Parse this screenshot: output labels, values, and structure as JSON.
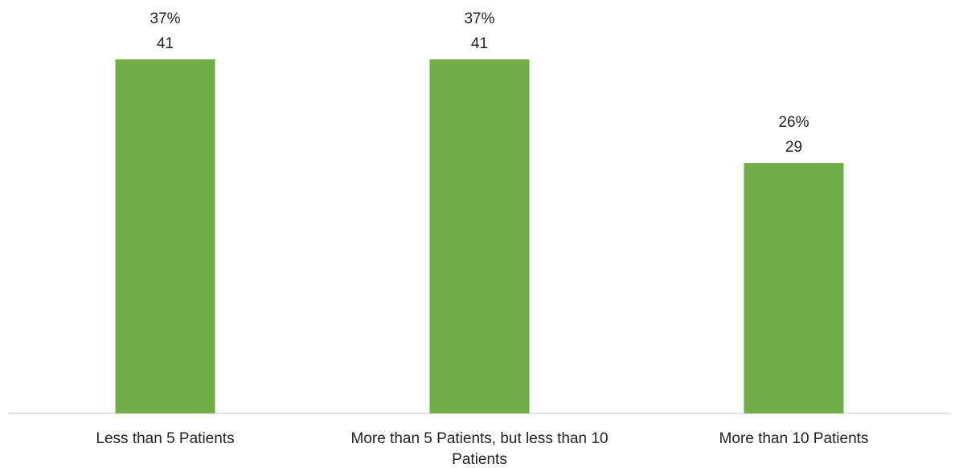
{
  "chart_data": {
    "type": "bar",
    "categories": [
      [
        "Less than 5 Patients"
      ],
      [
        "More than 5 Patients, but less than 10",
        "Patients"
      ],
      [
        "More than 10 Patients"
      ]
    ],
    "values": [
      41,
      41,
      29
    ],
    "percent_labels": [
      "37%",
      "37%",
      "26%"
    ],
    "count_labels": [
      "41",
      "41",
      "29"
    ],
    "ylim": [
      0,
      48
    ],
    "grid": false,
    "legend": "none",
    "bar_color": "#70AD47",
    "axis_color": "#D9D9D9",
    "text_color": "#222222"
  }
}
